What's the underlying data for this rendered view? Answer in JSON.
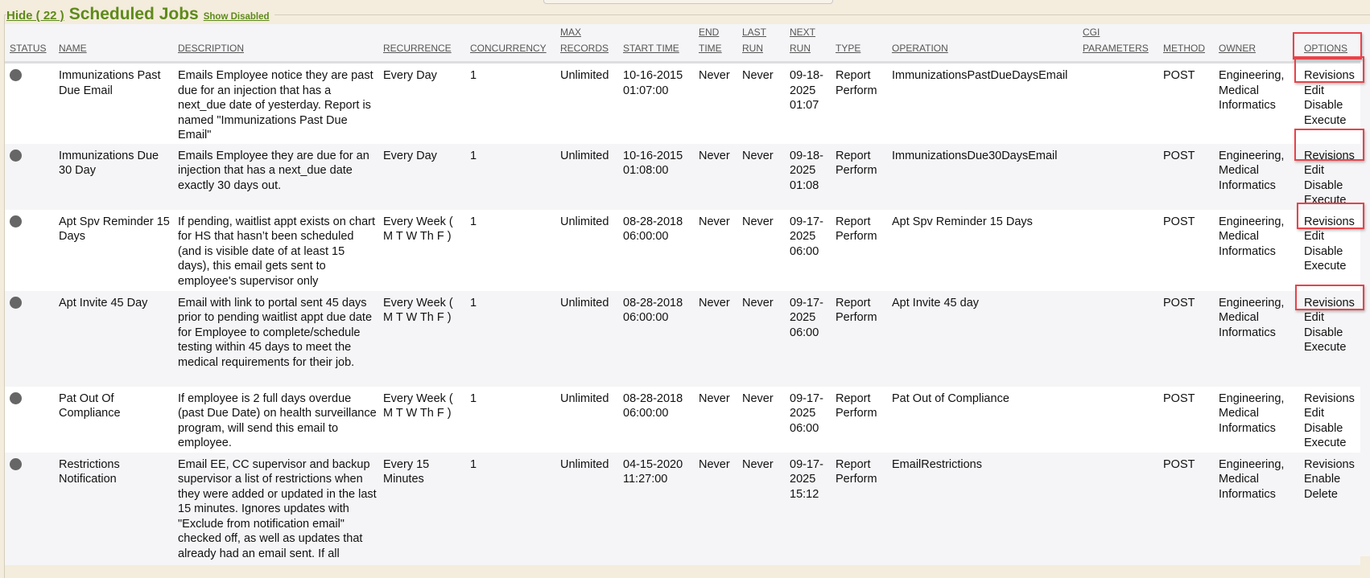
{
  "header": {
    "hide_label": "Hide ( 22 )",
    "title": "Scheduled Jobs",
    "show_disabled_label": "Show Disabled"
  },
  "columns": [
    [
      "STATUS"
    ],
    [
      "NAME"
    ],
    [
      "DESCRIPTION"
    ],
    [
      "RECURRENCE"
    ],
    [
      "CONCURRENCY"
    ],
    [
      "MAX",
      "RECORDS"
    ],
    [
      "START TIME"
    ],
    [
      "END",
      "TIME"
    ],
    [
      "LAST",
      "RUN"
    ],
    [
      "NEXT",
      "RUN"
    ],
    [
      "TYPE"
    ],
    [
      "OPERATION"
    ],
    [
      "CGI",
      "PARAMETERS"
    ],
    [
      "METHOD"
    ],
    [
      "OWNER"
    ],
    [
      "OPTIONS"
    ]
  ],
  "status_color": "#666666",
  "highlight_color": "#e8434a",
  "rows": [
    {
      "name": "Immunizations Past Due Email",
      "description": "Emails Employee notice they are past due for an injection that has a next_due date of yesterday. Report is named \"Immunizations Past Due Email\"",
      "recurrence": "Every Day",
      "concurrency": "1",
      "max_records": "Unlimited",
      "start_time": "10-16-2015 01:07:00",
      "end_time": "Never",
      "last_run": "Never",
      "next_run": "09-18-2025 01:07",
      "type": "Report Perform",
      "operation": "ImmunizationsPastDueDaysEmail",
      "cgi_parameters": "",
      "method": "POST",
      "owner": "Engineering, Medical Informatics",
      "options": [
        "Revisions",
        "Edit",
        "Disable",
        "Execute"
      ]
    },
    {
      "name": "Immunizations Due 30 Day",
      "description": "Emails Employee they are due for an injection that has a next_due date exactly 30 days out.",
      "recurrence": "Every Day",
      "concurrency": "1",
      "max_records": "Unlimited",
      "start_time": "10-16-2015 01:08:00",
      "end_time": "Never",
      "last_run": "Never",
      "next_run": "09-18-2025 01:08",
      "type": "Report Perform",
      "operation": "ImmunizationsDue30DaysEmail",
      "cgi_parameters": "",
      "method": "POST",
      "owner": "Engineering, Medical Informatics",
      "options": [
        "Revisions",
        "Edit",
        "Disable",
        "Execute"
      ]
    },
    {
      "name": "Apt Spv Reminder 15 Days",
      "description": "If pending, waitlist appt exists on chart for HS that hasn’t been scheduled (and is visible date of at least 15 days), this email gets sent to employee's supervisor only",
      "recurrence": "Every Week ( M T W Th F )",
      "concurrency": "1",
      "max_records": "Unlimited",
      "start_time": "08-28-2018 06:00:00",
      "end_time": "Never",
      "last_run": "Never",
      "next_run": "09-17-2025 06:00",
      "type": "Report Perform",
      "operation": "Apt Spv Reminder 15 Days",
      "cgi_parameters": "",
      "method": "POST",
      "owner": "Engineering, Medical Informatics",
      "options": [
        "Revisions",
        "Edit",
        "Disable",
        "Execute"
      ]
    },
    {
      "name": "Apt Invite 45 Day",
      "description": "Email with link to portal sent 45 days prior to pending waitlist appt due date for Employee to complete/schedule testing within 45 days to meet the medical requirements for their job.",
      "recurrence": "Every Week ( M T W Th F )",
      "concurrency": "1",
      "max_records": "Unlimited",
      "start_time": "08-28-2018 06:00:00",
      "end_time": "Never",
      "last_run": "Never",
      "next_run": "09-17-2025 06:00",
      "type": "Report Perform",
      "operation": "Apt Invite 45 day",
      "cgi_parameters": "",
      "method": "POST",
      "owner": "Engineering, Medical Informatics",
      "options": [
        "Revisions",
        "Edit",
        "Disable",
        "Execute"
      ]
    },
    {
      "name": "Pat Out Of Compliance",
      "description": "If employee is 2 full days overdue (past Due Date) on health surveillance program, will send this email to employee.",
      "recurrence": "Every Week ( M T W Th F )",
      "concurrency": "1",
      "max_records": "Unlimited",
      "start_time": "08-28-2018 06:00:00",
      "end_time": "Never",
      "last_run": "Never",
      "next_run": "09-17-2025 06:00",
      "type": "Report Perform",
      "operation": "Pat Out of Compliance",
      "cgi_parameters": "",
      "method": "POST",
      "owner": "Engineering, Medical Informatics",
      "options": [
        "Revisions",
        "Edit",
        "Disable",
        "Execute"
      ]
    },
    {
      "name": "Restrictions Notification",
      "description": "Email EE, CC supervisor and backup supervisor a list of restrictions when they were added or updated in the last 15 minutes. Ignores updates with \"Exclude from notification email\" checked off, as well as updates that already had an email sent. If all",
      "recurrence": "Every 15 Minutes",
      "concurrency": "1",
      "max_records": "Unlimited",
      "start_time": "04-15-2020 11:27:00",
      "end_time": "Never",
      "last_run": "Never",
      "next_run": "09-17-2025 15:12",
      "type": "Report Perform",
      "operation": "EmailRestrictions",
      "cgi_parameters": "",
      "method": "POST",
      "owner": "Engineering, Medical Informatics",
      "options": [
        "Revisions",
        "Enable",
        "Delete"
      ]
    }
  ]
}
